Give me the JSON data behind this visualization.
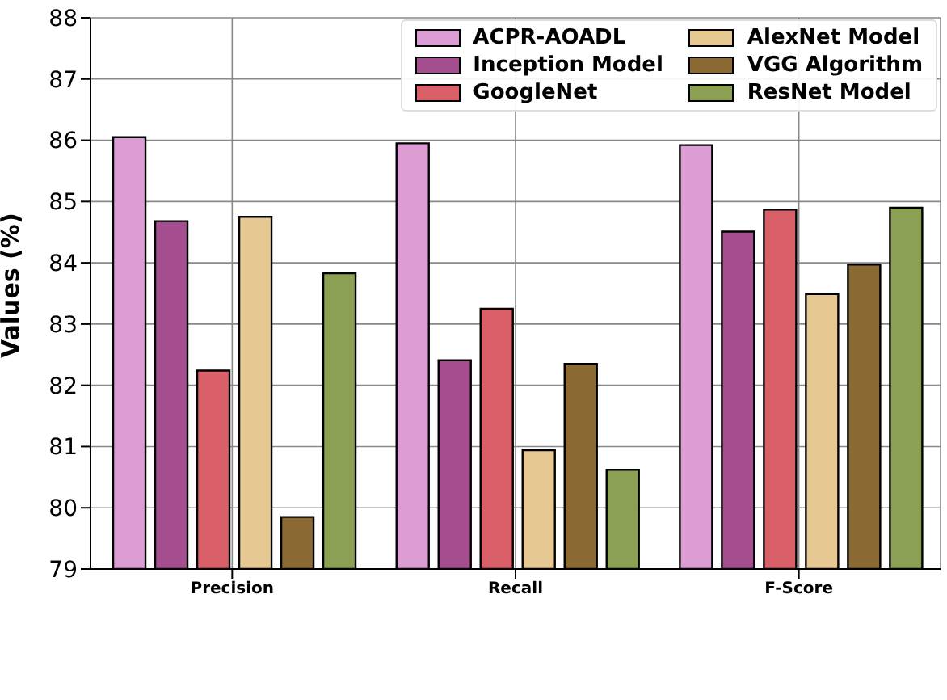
{
  "chart_data": {
    "type": "bar",
    "ylabel": "Values (%)",
    "categories": [
      "Precision",
      "Recall",
      "F-Score"
    ],
    "series": [
      {
        "name": "ACPR-AOADL",
        "color": "#dc9cd4",
        "values": [
          86.05,
          85.95,
          85.92
        ]
      },
      {
        "name": "Inception Model",
        "color": "#a44e90",
        "values": [
          84.68,
          82.41,
          84.51
        ]
      },
      {
        "name": "GoogleNet",
        "color": "#d95f68",
        "values": [
          82.24,
          83.25,
          84.87
        ]
      },
      {
        "name": "AlexNet Model",
        "color": "#e6c992",
        "values": [
          84.75,
          80.94,
          83.49
        ]
      },
      {
        "name": "VGG Algorithm",
        "color": "#8a6a32",
        "values": [
          79.85,
          82.35,
          83.97
        ]
      },
      {
        "name": "ResNet Model",
        "color": "#8ba052",
        "values": [
          83.83,
          80.62,
          84.9
        ]
      }
    ],
    "ylim": [
      79,
      88
    ],
    "yticks": [
      79,
      80,
      81,
      82,
      83,
      84,
      85,
      86,
      87,
      88
    ],
    "grid": true,
    "legend": "top right"
  }
}
